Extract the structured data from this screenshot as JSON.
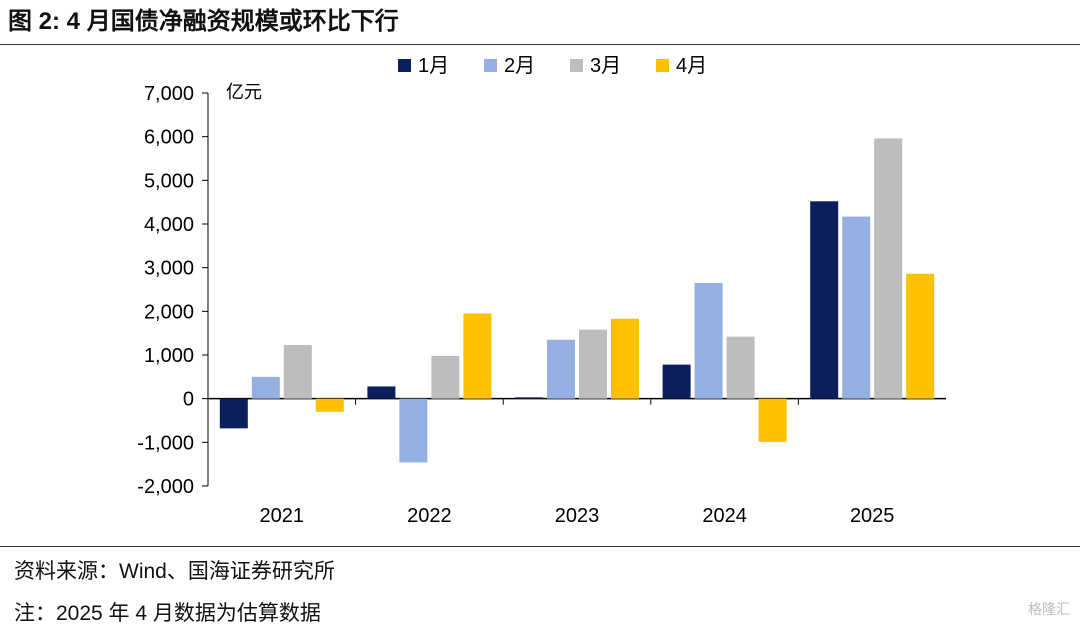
{
  "header": {
    "title": "图 2:  4 月国债净融资规模或环比下行"
  },
  "chart_data": {
    "type": "bar",
    "title": "图 2:  4 月国债净融资规模或环比下行",
    "unit_label": "亿元",
    "categories": [
      "2021",
      "2022",
      "2023",
      "2024",
      "2025"
    ],
    "series": [
      {
        "name": "1月",
        "color": "#0b1f5c",
        "values": [
          -680,
          280,
          30,
          780,
          4520
        ]
      },
      {
        "name": "2月",
        "color": "#94b0e0",
        "values": [
          500,
          -1460,
          1350,
          2650,
          4170
        ]
      },
      {
        "name": "3月",
        "color": "#bdbdbd",
        "values": [
          1230,
          980,
          1580,
          1420,
          5960
        ]
      },
      {
        "name": "4月",
        "color": "#ffc000",
        "values": [
          -300,
          1950,
          1830,
          -990,
          2860
        ]
      }
    ],
    "ylim": [
      -2000,
      7000
    ],
    "yticks": [
      7000,
      6000,
      5000,
      4000,
      3000,
      2000,
      1000,
      0,
      -1000,
      -2000
    ],
    "ytick_labels": [
      "7,000",
      "6,000",
      "5,000",
      "4,000",
      "3,000",
      "2,000",
      "1,000",
      "0",
      "-1,000",
      "-2,000"
    ],
    "legend_position": "top-center",
    "grid": false
  },
  "footer": {
    "source": "资料来源：Wind、国海证券研究所",
    "note": "注：2025 年 4 月数据为估算数据"
  },
  "watermark": "格隆汇"
}
